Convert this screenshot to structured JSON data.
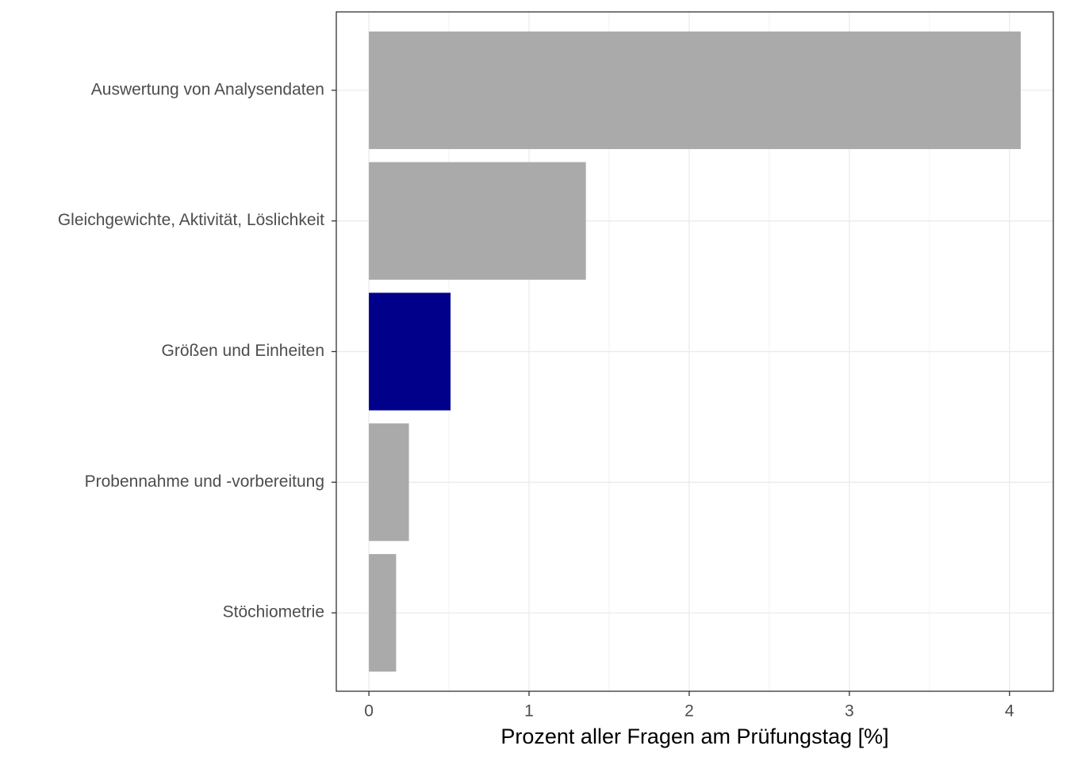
{
  "chart_data": {
    "type": "barh",
    "x_label": "Prozent aller Fragen am Prüfungstag [%]",
    "categories": [
      "Auswertung von Analysendaten",
      "Gleichgewichte, Aktivität, Löslichkeit",
      "Größen und Einheiten",
      "Probennahme und -vorbereitung",
      "Stöchiometrie"
    ],
    "values": [
      4.07,
      1.355,
      0.51,
      0.25,
      0.17
    ],
    "colors": [
      "#aaaaaa",
      "#aaaaaa",
      "#00008b",
      "#aaaaaa",
      "#aaaaaa"
    ],
    "xlim": [
      -0.2035,
      4.2735
    ],
    "xticks": [
      0,
      1,
      2,
      3,
      4
    ],
    "grid": true
  }
}
